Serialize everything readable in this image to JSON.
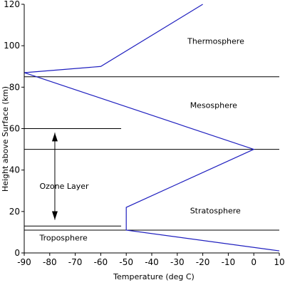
{
  "chart_data": {
    "type": "line",
    "xlabel": "Temperature (deg C)",
    "ylabel": "Height above Surface (km)",
    "xlim": [
      -90,
      10
    ],
    "ylim": [
      0,
      120
    ],
    "x_ticks": [
      -90,
      -80,
      -70,
      -60,
      -50,
      -40,
      -30,
      -20,
      -10,
      0,
      10
    ],
    "y_ticks": [
      0,
      20,
      40,
      60,
      80,
      100,
      120
    ],
    "grid": false,
    "colors": {
      "profile": "#1f1fbf",
      "boundary": "#000000",
      "axis": "#000000"
    },
    "series": [
      {
        "x": [
          10,
          -50,
          -50,
          0,
          -90,
          -60,
          -20
        ],
        "y": [
          1,
          11,
          22,
          50,
          87,
          90,
          120
        ]
      }
    ],
    "boundary_lines": [
      {
        "y": 11,
        "x_range": [
          -90,
          10
        ]
      },
      {
        "y": 13,
        "x_range": [
          -90,
          -52
        ]
      },
      {
        "y": 50,
        "x_range": [
          -90,
          10
        ]
      },
      {
        "y": 60,
        "x_range": [
          -90,
          -52
        ]
      },
      {
        "y": 85,
        "x_range": [
          -90,
          10
        ]
      }
    ],
    "ozone_arrow": {
      "x": -78,
      "y_bottom": 16,
      "y_top": 58
    },
    "annotations": [
      {
        "text": "Thermosphere",
        "x": -26,
        "y": 101
      },
      {
        "text": "Mesosphere",
        "x": -25,
        "y": 70
      },
      {
        "text": "Ozone Layer",
        "x": -84,
        "y": 31
      },
      {
        "text": "Stratosphere",
        "x": -25,
        "y": 19
      },
      {
        "text": "Troposphere",
        "x": -84,
        "y": 6
      }
    ]
  }
}
